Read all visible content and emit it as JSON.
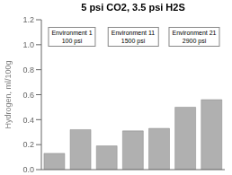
{
  "chart_data": {
    "type": "bar",
    "title": "5 psi CO2, 3.5 psi H2S",
    "ylabel": "Hydrogen, ml/100g",
    "categories": [
      null,
      null,
      null,
      null,
      null,
      null,
      null
    ],
    "values": [
      0.13,
      0.32,
      0.19,
      0.31,
      0.33,
      0.5,
      0.56
    ],
    "color": "#b0b0b0",
    "ylim": [
      0,
      1.2
    ],
    "yticks": [
      {
        "value": 0,
        "label": "0.0"
      },
      0.2,
      0.4,
      0.6,
      0.8,
      {
        "value": 1.0,
        "label": "1.0"
      },
      1.2
    ],
    "annotations": [
      "Environment 1\n100 psi",
      "Environment 11\n1500 psi",
      "Environment 21\n2900 psi"
    ],
    "grid": false,
    "tick_labels": "y"
  }
}
